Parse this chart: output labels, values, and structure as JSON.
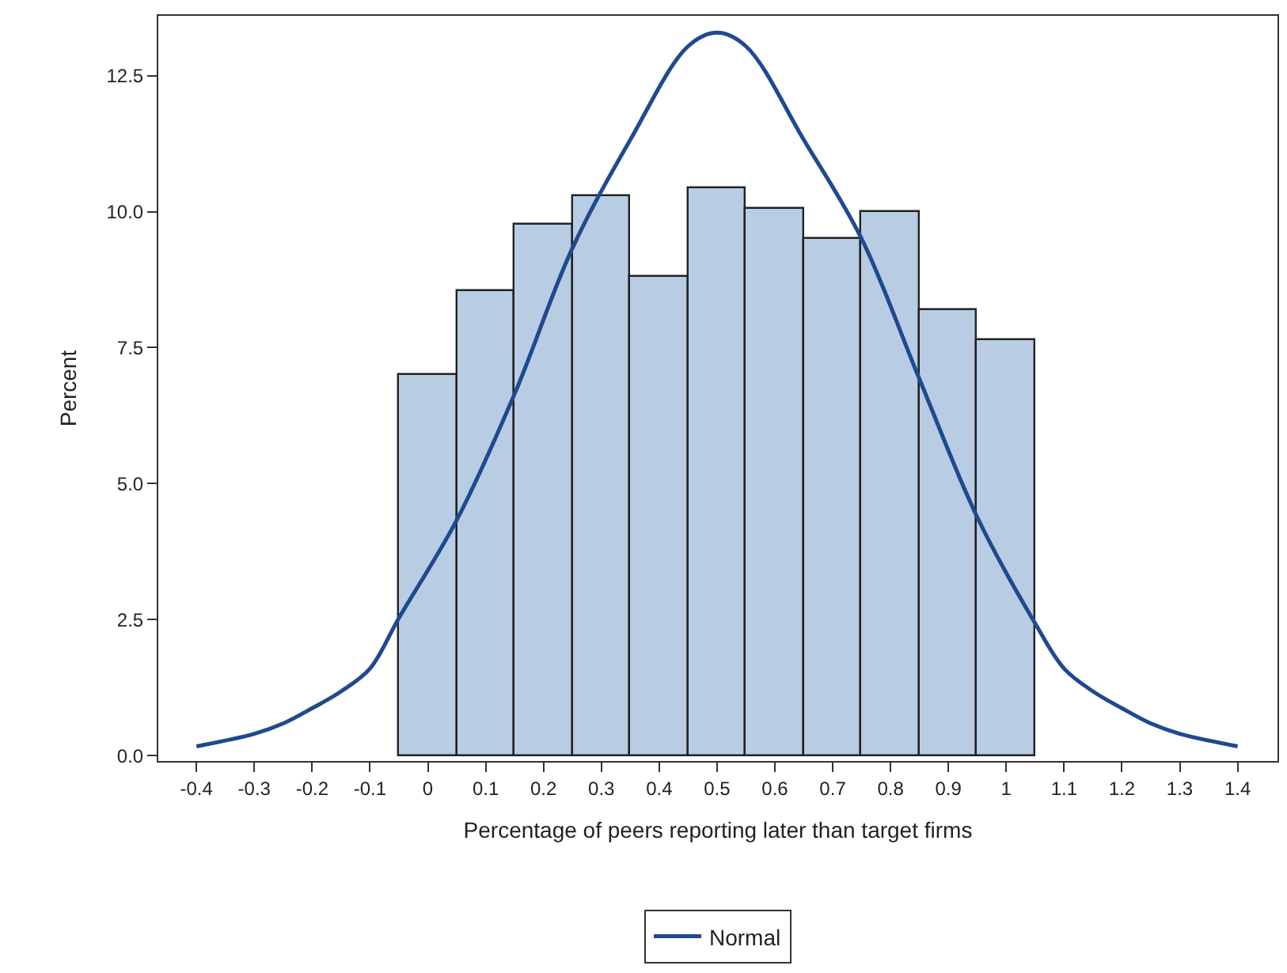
{
  "chart_data": {
    "type": "histogram",
    "xlabel": "Percentage of peers reporting later than target firms",
    "ylabel": "Percent",
    "bins": [
      -0.05,
      0.05,
      0.15,
      0.25,
      0.35,
      0.45,
      0.55,
      0.65,
      0.75,
      0.85,
      0.95,
      1.05
    ],
    "values": [
      6.99,
      8.53,
      9.75,
      10.28,
      8.81,
      10.42,
      10.04,
      9.51,
      9.99,
      8.18,
      7.64
    ],
    "color": "#b8cde4",
    "series": [
      {
        "name": "Normal",
        "type": "line",
        "color": "#1f4a8f",
        "x": [
          -0.4,
          -0.3,
          -0.25,
          -0.2,
          -0.15,
          -0.1,
          -0.05,
          0.05,
          0.15,
          0.25,
          0.35,
          0.45,
          0.5,
          0.55,
          0.65,
          0.75,
          0.85,
          0.95,
          1.05,
          1.1,
          1.15,
          1.2,
          1.25,
          1.3,
          1.4
        ],
        "values": [
          0.17,
          0.4,
          0.59,
          0.87,
          1.18,
          1.6,
          2.53,
          4.33,
          6.65,
          9.33,
          11.32,
          13.04,
          13.29,
          13.04,
          11.32,
          9.5,
          6.92,
          4.38,
          2.43,
          1.6,
          1.18,
          0.87,
          0.59,
          0.4,
          0.17
        ]
      }
    ],
    "xlim": [
      -0.466,
      1.469
    ],
    "ylim": [
      -0.1,
      13.6
    ],
    "xticks": [
      -0.4,
      -0.3,
      -0.2,
      -0.1,
      0,
      0.1,
      0.2,
      0.3,
      0.4,
      0.5,
      0.6,
      0.7,
      0.8,
      0.9,
      1,
      1.1,
      1.2,
      1.3,
      1.4
    ],
    "yticks": [
      {
        "value": 0,
        "label": "0.0"
      },
      {
        "value": 2.5,
        "label": "2.5"
      },
      {
        "value": 5,
        "label": "5.0"
      },
      {
        "value": 7.5,
        "label": "7.5"
      },
      {
        "value": 10,
        "label": "10.0"
      },
      {
        "value": 12.5,
        "label": "12.5"
      }
    ],
    "legend": "bottom"
  }
}
